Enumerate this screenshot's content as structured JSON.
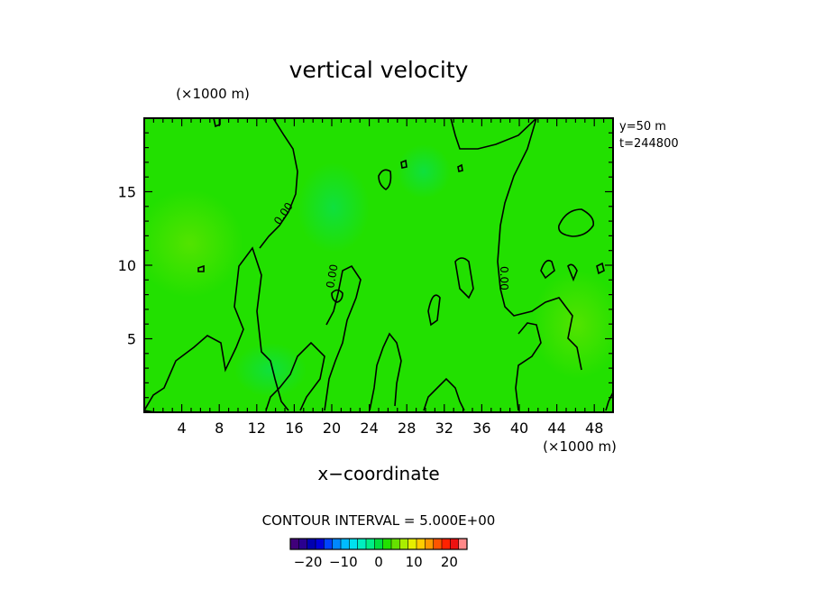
{
  "chart_data": {
    "type": "heatmap",
    "title": "vertical velocity",
    "xlabel": "x−coordinate",
    "x_units": "(×1000 m)",
    "y_units": "(×1000 m)",
    "x_ticks": [
      "4",
      "8",
      "12",
      "16",
      "20",
      "24",
      "28",
      "32",
      "36",
      "40",
      "44",
      "48"
    ],
    "y_ticks": [
      "5",
      "10",
      "15"
    ],
    "xlim": [
      0,
      50
    ],
    "ylim": [
      0,
      20
    ],
    "annotations": [
      "y=50 m",
      "t=244800"
    ],
    "contour_interval_text": "CONTOUR INTERVAL = 5.000E+00",
    "contour_levels": [
      0
    ],
    "contour_label": "0.00",
    "field_background_color": "#22e000",
    "colorbar": {
      "range": [
        -25,
        25
      ],
      "ticks": [
        "−20",
        "−10",
        "0",
        "10",
        "20"
      ],
      "tick_values": [
        -20,
        -10,
        0,
        10,
        20
      ],
      "colors": [
        "#40007a",
        "#2a0090",
        "#0000b0",
        "#0000d8",
        "#0044ff",
        "#0088ff",
        "#00bbff",
        "#00e0ee",
        "#00eec0",
        "#00ee88",
        "#00e040",
        "#22e000",
        "#66e000",
        "#aaee00",
        "#e6ee00",
        "#ffcc00",
        "#ff9900",
        "#ff5500",
        "#ff2200",
        "#ee1111",
        "#ff8888"
      ]
    }
  }
}
